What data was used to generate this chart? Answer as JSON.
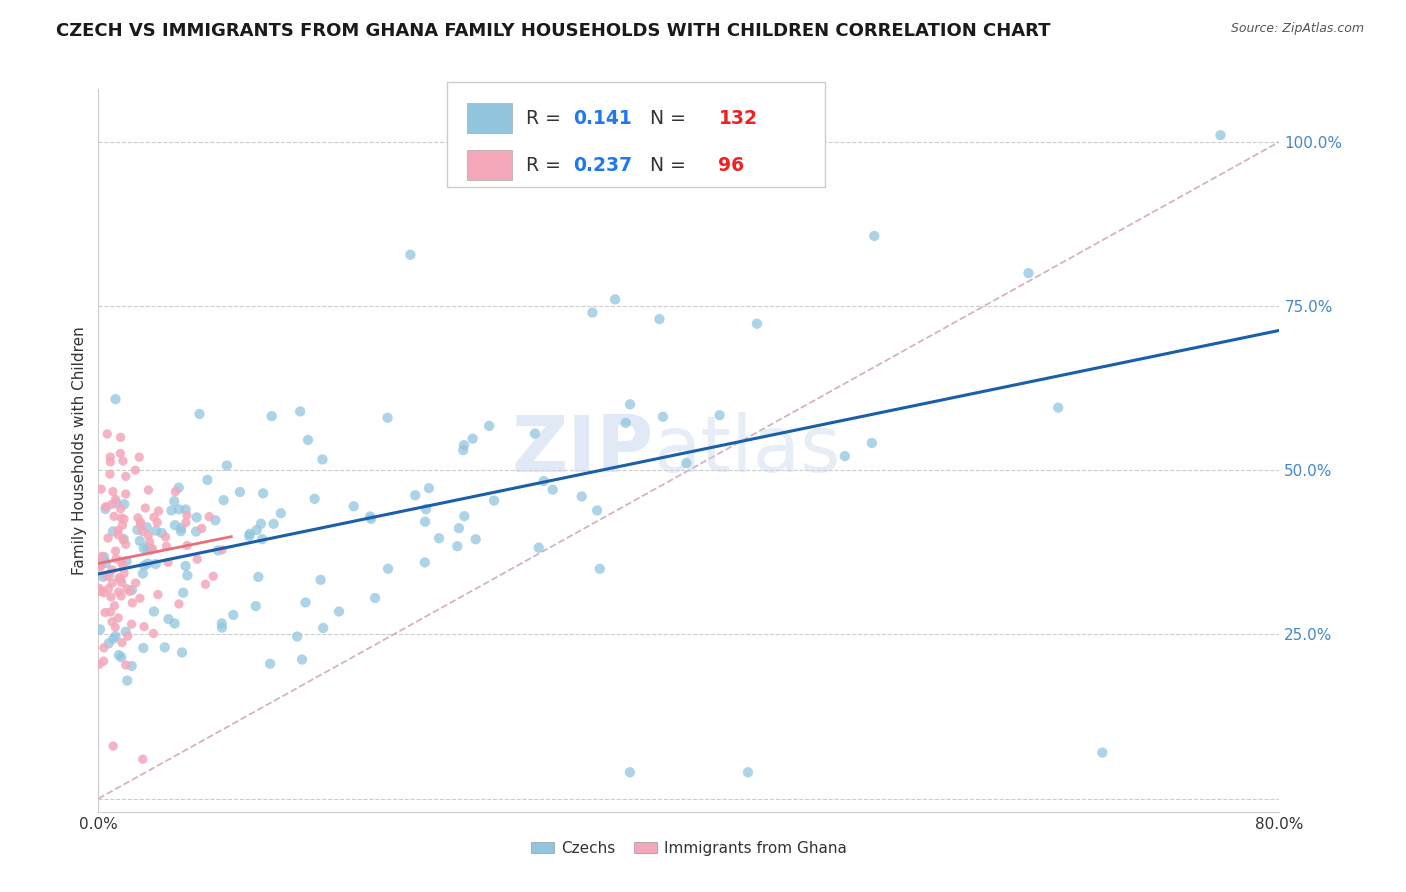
{
  "title": "CZECH VS IMMIGRANTS FROM GHANA FAMILY HOUSEHOLDS WITH CHILDREN CORRELATION CHART",
  "source": "Source: ZipAtlas.com",
  "ylabel": "Family Households with Children",
  "xlim": [
    0.0,
    0.8
  ],
  "ylim": [
    -0.02,
    1.08
  ],
  "ytick_values": [
    0.0,
    0.25,
    0.5,
    0.75,
    1.0
  ],
  "yticklabels": [
    "",
    "25.0%",
    "50.0%",
    "75.0%",
    "100.0%"
  ],
  "xtick_values": [
    0.0,
    0.1,
    0.2,
    0.3,
    0.4,
    0.5,
    0.6,
    0.7,
    0.8
  ],
  "xticklabels_show": [
    "0.0%",
    "",
    "",
    "",
    "",
    "",
    "",
    "",
    "80.0%"
  ],
  "czech_color": "#92c5de",
  "ghana_color": "#f4a7b9",
  "czech_line_color": "#1a5fa8",
  "ghana_line_color": "#e8707a",
  "ref_line_color": "#d0aabb",
  "legend_R_czech": "0.141",
  "legend_N_czech": "132",
  "legend_R_ghana": "0.237",
  "legend_N_ghana": "96",
  "legend_text_color": "#333333",
  "legend_value_color": "#2277ee",
  "watermark_zip": "ZIP",
  "watermark_atlas": "atlas",
  "background_color": "#ffffff",
  "title_fontsize": 13,
  "label_fontsize": 11,
  "tick_fontsize": 11,
  "tick_color": "#4488cc",
  "czech_scatter_seed": 42,
  "ghana_scatter_seed": 7,
  "N_czech": 132,
  "N_ghana": 96
}
